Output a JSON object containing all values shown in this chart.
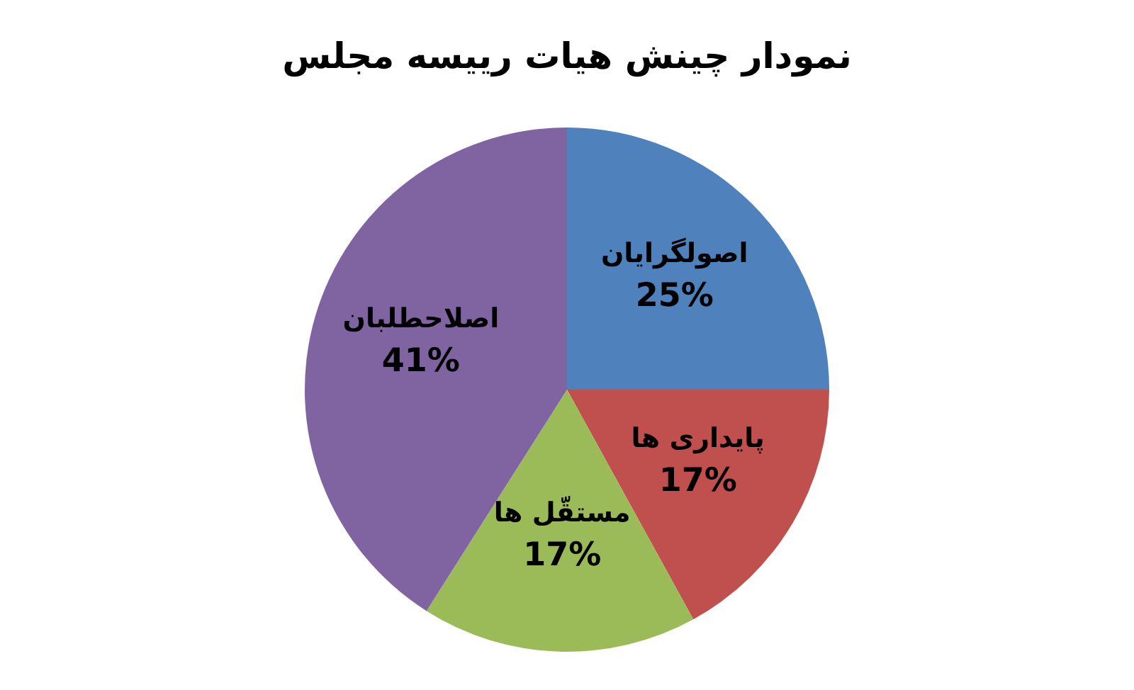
{
  "chart_data": {
    "type": "pie",
    "title": "نمودار چینش هیات رییسه مجلس",
    "categories": [
      "اصولگرایان",
      "پایداری ها",
      "مستقّل ها",
      "اصلاحطلبان"
    ],
    "values": [
      25,
      17,
      17,
      41
    ],
    "colors": [
      "#4f81bd",
      "#c0504d",
      "#9bbb59",
      "#8064a2"
    ],
    "value_labels": [
      "25%",
      "17%",
      "17%",
      "41%"
    ]
  }
}
